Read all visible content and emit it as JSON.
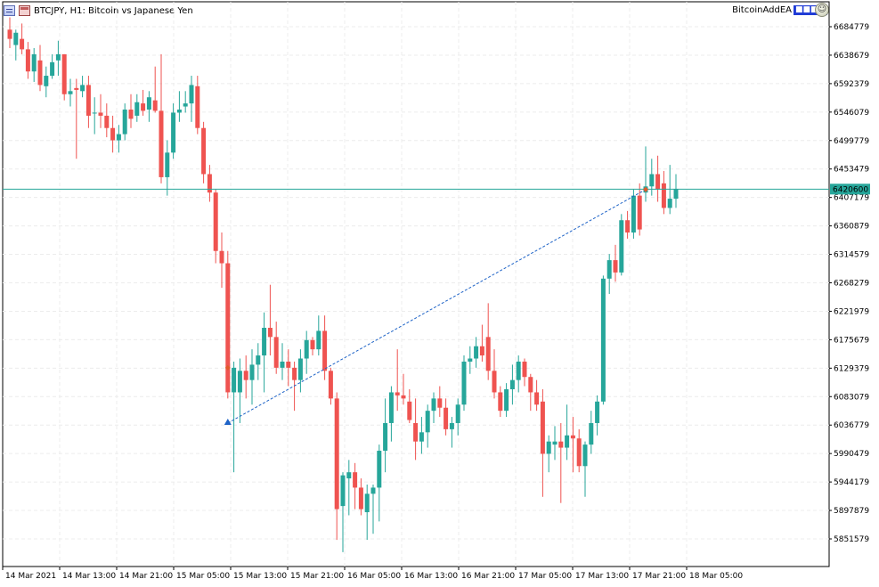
{
  "header": {
    "symbol_label": "BTCJPY, H1:  Bitcoin vs Japanese Yen",
    "expert_name": "BitcoinAddEA",
    "expert_tag": "■■■■",
    "menu_icon": "chart-menu-icon",
    "window_icon": "chart-window-icon",
    "expert_icon": "expert-smiley-icon"
  },
  "colors": {
    "bull": "#26a69a",
    "bear": "#ef5350",
    "grid": "#ececec",
    "price_line": "#26a69a",
    "trade_line": "#1e63c7",
    "axis": "#000000"
  },
  "chart_data": {
    "type": "candlestick",
    "title": "BTCJPY, H1:  Bitcoin vs Japanese Yen",
    "price_ticks": [
      "6684779",
      "6638679",
      "6592379",
      "6546079",
      "6499779",
      "6453479",
      "6407179",
      "6360879",
      "6314579",
      "6268279",
      "6221979",
      "6175679",
      "6129379",
      "6083079",
      "6036779",
      "5990479",
      "5944179",
      "5897879",
      "5851579"
    ],
    "time_ticks": [
      "14 Mar 2021",
      "14 Mar 13:00",
      "14 Mar 21:00",
      "15 Mar 05:00",
      "15 Mar 13:00",
      "15 Mar 21:00",
      "16 Mar 05:00",
      "16 Mar 13:00",
      "16 Mar 21:00",
      "17 Mar 05:00",
      "17 Mar 13:00",
      "17 Mar 21:00",
      "18 Mar 05:00"
    ],
    "current_price": "6420600",
    "ylim": [
      5830000,
      6700000
    ],
    "candles": [
      {
        "o": 6680000,
        "h": 6700000,
        "l": 6650000,
        "c": 6665000
      },
      {
        "o": 6655000,
        "h": 6680000,
        "l": 6630000,
        "c": 6675000
      },
      {
        "o": 6665000,
        "h": 6690000,
        "l": 6640000,
        "c": 6648000
      },
      {
        "o": 6648000,
        "h": 6660000,
        "l": 6600000,
        "c": 6612000
      },
      {
        "o": 6612000,
        "h": 6650000,
        "l": 6595000,
        "c": 6640000
      },
      {
        "o": 6630000,
        "h": 6655000,
        "l": 6580000,
        "c": 6590000
      },
      {
        "o": 6588000,
        "h": 6620000,
        "l": 6570000,
        "c": 6605000
      },
      {
        "o": 6605000,
        "h": 6640000,
        "l": 6600000,
        "c": 6627000
      },
      {
        "o": 6630000,
        "h": 6662000,
        "l": 6605000,
        "c": 6640000
      },
      {
        "o": 6640000,
        "h": 6640000,
        "l": 6565000,
        "c": 6575000
      },
      {
        "o": 6575000,
        "h": 6600000,
        "l": 6555000,
        "c": 6580000
      },
      {
        "o": 6585000,
        "h": 6600000,
        "l": 6470000,
        "c": 6582000
      },
      {
        "o": 6580000,
        "h": 6605000,
        "l": 6570000,
        "c": 6590000
      },
      {
        "o": 6590000,
        "h": 6605000,
        "l": 6520000,
        "c": 6540000
      },
      {
        "o": 6545000,
        "h": 6570000,
        "l": 6510000,
        "c": 6545000
      },
      {
        "o": 6545000,
        "h": 6575000,
        "l": 6520000,
        "c": 6540000
      },
      {
        "o": 6540000,
        "h": 6560000,
        "l": 6505000,
        "c": 6520000
      },
      {
        "o": 6520000,
        "h": 6540000,
        "l": 6480000,
        "c": 6500000
      },
      {
        "o": 6500000,
        "h": 6525000,
        "l": 6480000,
        "c": 6510000
      },
      {
        "o": 6510000,
        "h": 6560000,
        "l": 6500000,
        "c": 6550000
      },
      {
        "o": 6550000,
        "h": 6575000,
        "l": 6520000,
        "c": 6535000
      },
      {
        "o": 6540000,
        "h": 6575000,
        "l": 6530000,
        "c": 6562000
      },
      {
        "o": 6560000,
        "h": 6582000,
        "l": 6540000,
        "c": 6548000
      },
      {
        "o": 6550000,
        "h": 6580000,
        "l": 6530000,
        "c": 6570000
      },
      {
        "o": 6565000,
        "h": 6620000,
        "l": 6545000,
        "c": 6548000
      },
      {
        "o": 6548000,
        "h": 6640000,
        "l": 6430000,
        "c": 6440000
      },
      {
        "o": 6440000,
        "h": 6500000,
        "l": 6410000,
        "c": 6480000
      },
      {
        "o": 6480000,
        "h": 6560000,
        "l": 6470000,
        "c": 6545000
      },
      {
        "o": 6545000,
        "h": 6580000,
        "l": 6530000,
        "c": 6550000
      },
      {
        "o": 6555000,
        "h": 6580000,
        "l": 6545000,
        "c": 6560000
      },
      {
        "o": 6560000,
        "h": 6605000,
        "l": 6530000,
        "c": 6590000
      },
      {
        "o": 6588000,
        "h": 6605000,
        "l": 6510000,
        "c": 6520000
      },
      {
        "o": 6520000,
        "h": 6530000,
        "l": 6430000,
        "c": 6445000
      },
      {
        "o": 6445000,
        "h": 6460000,
        "l": 6400000,
        "c": 6415000
      },
      {
        "o": 6415000,
        "h": 6420000,
        "l": 6300000,
        "c": 6320000
      },
      {
        "o": 6320000,
        "h": 6350000,
        "l": 6260000,
        "c": 6300000
      },
      {
        "o": 6300000,
        "h": 6320000,
        "l": 6080000,
        "c": 6090000
      },
      {
        "o": 6090000,
        "h": 6140000,
        "l": 5960000,
        "c": 6130000
      },
      {
        "o": 6090000,
        "h": 6145000,
        "l": 6040000,
        "c": 6125000
      },
      {
        "o": 6125000,
        "h": 6150000,
        "l": 6080000,
        "c": 6110000
      },
      {
        "o": 6110000,
        "h": 6160000,
        "l": 6070000,
        "c": 6135000
      },
      {
        "o": 6135000,
        "h": 6170000,
        "l": 6110000,
        "c": 6150000
      },
      {
        "o": 6150000,
        "h": 6220000,
        "l": 6090000,
        "c": 6195000
      },
      {
        "o": 6195000,
        "h": 6265000,
        "l": 6150000,
        "c": 6180000
      },
      {
        "o": 6180000,
        "h": 6205000,
        "l": 6120000,
        "c": 6130000
      },
      {
        "o": 6130000,
        "h": 6170000,
        "l": 6110000,
        "c": 6140000
      },
      {
        "o": 6140000,
        "h": 6160000,
        "l": 6100000,
        "c": 6130000
      },
      {
        "o": 6130000,
        "h": 6140000,
        "l": 6060000,
        "c": 6110000
      },
      {
        "o": 6110000,
        "h": 6160000,
        "l": 6090000,
        "c": 6145000
      },
      {
        "o": 6145000,
        "h": 6190000,
        "l": 6120000,
        "c": 6175000
      },
      {
        "o": 6175000,
        "h": 6180000,
        "l": 6150000,
        "c": 6160000
      },
      {
        "o": 6160000,
        "h": 6215000,
        "l": 6150000,
        "c": 6190000
      },
      {
        "o": 6190000,
        "h": 6215000,
        "l": 6110000,
        "c": 6125000
      },
      {
        "o": 6125000,
        "h": 6130000,
        "l": 6070000,
        "c": 6080000
      },
      {
        "o": 6080000,
        "h": 6090000,
        "l": 5850000,
        "c": 5900000
      },
      {
        "o": 5905000,
        "h": 5960000,
        "l": 5830000,
        "c": 5955000
      },
      {
        "o": 5950000,
        "h": 5980000,
        "l": 5890000,
        "c": 5960000
      },
      {
        "o": 5960000,
        "h": 5975000,
        "l": 5900000,
        "c": 5935000
      },
      {
        "o": 5935000,
        "h": 5950000,
        "l": 5890000,
        "c": 5900000
      },
      {
        "o": 5895000,
        "h": 5940000,
        "l": 5850000,
        "c": 5925000
      },
      {
        "o": 5925000,
        "h": 5940000,
        "l": 5860000,
        "c": 5935000
      },
      {
        "o": 5935000,
        "h": 6005000,
        "l": 5880000,
        "c": 5995000
      },
      {
        "o": 5995000,
        "h": 6080000,
        "l": 5960000,
        "c": 6040000
      },
      {
        "o": 6040000,
        "h": 6100000,
        "l": 6010000,
        "c": 6090000
      },
      {
        "o": 6090000,
        "h": 6160000,
        "l": 6060000,
        "c": 6085000
      },
      {
        "o": 6085000,
        "h": 6120000,
        "l": 6070000,
        "c": 6080000
      },
      {
        "o": 6075000,
        "h": 6095000,
        "l": 6040000,
        "c": 6045000
      },
      {
        "o": 6040000,
        "h": 6080000,
        "l": 5980000,
        "c": 6010000
      },
      {
        "o": 6010000,
        "h": 6050000,
        "l": 5990000,
        "c": 6025000
      },
      {
        "o": 6025000,
        "h": 6070000,
        "l": 6000000,
        "c": 6060000
      },
      {
        "o": 6060000,
        "h": 6090000,
        "l": 6040000,
        "c": 6080000
      },
      {
        "o": 6080000,
        "h": 6100000,
        "l": 6050000,
        "c": 6065000
      },
      {
        "o": 6065000,
        "h": 6080000,
        "l": 6020000,
        "c": 6030000
      },
      {
        "o": 6030000,
        "h": 6050000,
        "l": 6000000,
        "c": 6040000
      },
      {
        "o": 6040000,
        "h": 6080000,
        "l": 6020000,
        "c": 6070000
      },
      {
        "o": 6070000,
        "h": 6150000,
        "l": 6060000,
        "c": 6140000
      },
      {
        "o": 6140000,
        "h": 6165000,
        "l": 6120000,
        "c": 6145000
      },
      {
        "o": 6145000,
        "h": 6180000,
        "l": 6130000,
        "c": 6165000
      },
      {
        "o": 6165000,
        "h": 6200000,
        "l": 6140000,
        "c": 6150000
      },
      {
        "o": 6180000,
        "h": 6235000,
        "l": 6110000,
        "c": 6125000
      },
      {
        "o": 6125000,
        "h": 6160000,
        "l": 6080000,
        "c": 6090000
      },
      {
        "o": 6090000,
        "h": 6100000,
        "l": 6050000,
        "c": 6060000
      },
      {
        "o": 6060000,
        "h": 6105000,
        "l": 6050000,
        "c": 6095000
      },
      {
        "o": 6095000,
        "h": 6135000,
        "l": 6070000,
        "c": 6110000
      },
      {
        "o": 6110000,
        "h": 6150000,
        "l": 6090000,
        "c": 6140000
      },
      {
        "o": 6140000,
        "h": 6145000,
        "l": 6100000,
        "c": 6115000
      },
      {
        "o": 6115000,
        "h": 6120000,
        "l": 6060000,
        "c": 6090000
      },
      {
        "o": 6090000,
        "h": 6110000,
        "l": 6060000,
        "c": 6070000
      },
      {
        "o": 6075000,
        "h": 6095000,
        "l": 5920000,
        "c": 5990000
      },
      {
        "o": 5990000,
        "h": 6020000,
        "l": 5960000,
        "c": 6010000
      },
      {
        "o": 6005000,
        "h": 6035000,
        "l": 5980000,
        "c": 6010000
      },
      {
        "o": 6010000,
        "h": 6040000,
        "l": 5910000,
        "c": 6000000
      },
      {
        "o": 6000000,
        "h": 6070000,
        "l": 5980000,
        "c": 6020000
      },
      {
        "o": 6020000,
        "h": 6050000,
        "l": 5960000,
        "c": 6015000
      },
      {
        "o": 6015000,
        "h": 6030000,
        "l": 5960000,
        "c": 5970000
      },
      {
        "o": 5970000,
        "h": 6010000,
        "l": 5920000,
        "c": 6005000
      },
      {
        "o": 6005000,
        "h": 6060000,
        "l": 5990000,
        "c": 6040000
      },
      {
        "o": 6040000,
        "h": 6085000,
        "l": 6020000,
        "c": 6075000
      },
      {
        "o": 6075000,
        "h": 6280000,
        "l": 6070000,
        "c": 6275000
      },
      {
        "o": 6275000,
        "h": 6315000,
        "l": 6250000,
        "c": 6305000
      },
      {
        "o": 6305000,
        "h": 6330000,
        "l": 6270000,
        "c": 6285000
      },
      {
        "o": 6285000,
        "h": 6380000,
        "l": 6280000,
        "c": 6370000
      },
      {
        "o": 6370000,
        "h": 6385000,
        "l": 6340000,
        "c": 6350000
      },
      {
        "o": 6350000,
        "h": 6420000,
        "l": 6340000,
        "c": 6410000
      },
      {
        "o": 6410000,
        "h": 6430000,
        "l": 6345000,
        "c": 6355000
      },
      {
        "o": 6415000,
        "h": 6490000,
        "l": 6400000,
        "c": 6425000
      },
      {
        "o": 6425000,
        "h": 6470000,
        "l": 6410000,
        "c": 6445000
      },
      {
        "o": 6445000,
        "h": 6475000,
        "l": 6400000,
        "c": 6420000
      },
      {
        "o": 6430000,
        "h": 6450000,
        "l": 6380000,
        "c": 6390000
      },
      {
        "o": 6390000,
        "h": 6460000,
        "l": 6380000,
        "c": 6405000
      },
      {
        "o": 6405000,
        "h": 6445000,
        "l": 6390000,
        "c": 6420600
      }
    ],
    "trade_open_index": 36,
    "trade_open_price": 6040000,
    "trade_close_index": 105,
    "trade_close_price": 6420000,
    "markers": [
      {
        "index": 36,
        "price": 6040000,
        "kind": "buy-arrow"
      },
      {
        "index": 36,
        "price": 6130000,
        "kind": "close-marker"
      },
      {
        "index": 105,
        "price": 6420000,
        "kind": "close-marker"
      }
    ]
  }
}
